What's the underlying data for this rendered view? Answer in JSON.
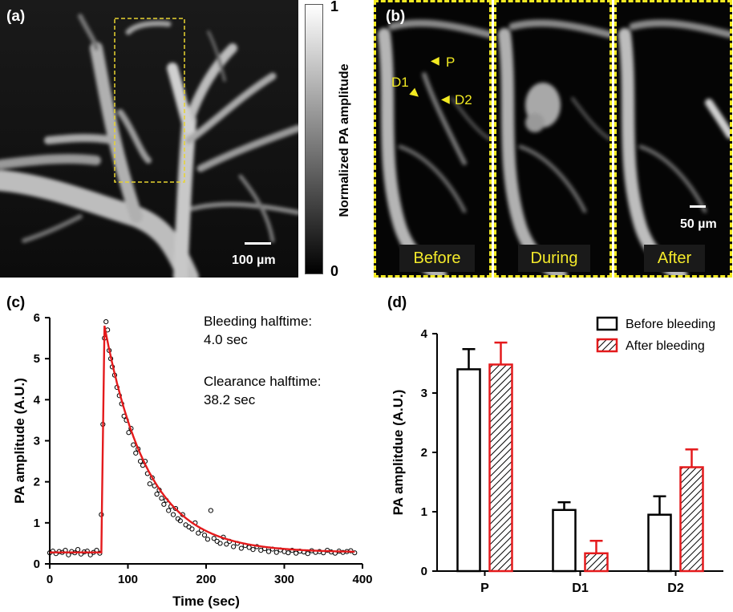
{
  "panel_a": {
    "label": "(a)",
    "scalebar": "100 µm",
    "colorbar": {
      "title": "Normalized PA amplitude",
      "max": "1",
      "min": "0"
    }
  },
  "panel_b": {
    "label": "(b)",
    "frames": [
      "Before",
      "During",
      "After"
    ],
    "markers": [
      "P",
      "D1",
      "D2"
    ],
    "scalebar": "50 µm"
  },
  "colors": {
    "fit_line": "#e41a1c",
    "before_bar": "#000000",
    "after_bar": "#e41a1c",
    "annotation": "#f2ea22"
  },
  "chart_data": [
    {
      "type": "scatter",
      "panel_label": "(c)",
      "xlabel": "Time (sec)",
      "ylabel": "PA amplitude (A.U.)",
      "xlim": [
        0,
        400
      ],
      "ylim": [
        0,
        6
      ],
      "xticks": [
        0,
        100,
        200,
        300,
        400
      ],
      "yticks": [
        0,
        1,
        2,
        3,
        4,
        5,
        6
      ],
      "annotations": [
        "Bleeding halftime:",
        "4.0 sec",
        "Clearance halftime:",
        "38.2 sec"
      ],
      "fit": {
        "baseline": 0.28,
        "onset_time": 66,
        "peak_time": 70,
        "peak_value": 5.8,
        "bleeding_halftime": 4.0,
        "clearance_halftime": 38.2
      },
      "series": [
        {
          "x": [
            0,
            4,
            8,
            12,
            16,
            20,
            24,
            28,
            32,
            36,
            40,
            44,
            48,
            52,
            56,
            60,
            64,
            66,
            68,
            70,
            72,
            74,
            76,
            78,
            80,
            83,
            86,
            89,
            92,
            95,
            98,
            101,
            104,
            107,
            110,
            113,
            116,
            119,
            122,
            125,
            128,
            131,
            134,
            137,
            140,
            143,
            146,
            149,
            152,
            155,
            158,
            161,
            164,
            167,
            170,
            174,
            178,
            182,
            186,
            190,
            194,
            198,
            202,
            206,
            210,
            214,
            218,
            222,
            226,
            230,
            235,
            240,
            245,
            250,
            255,
            260,
            265,
            270,
            275,
            280,
            285,
            290,
            295,
            300,
            305,
            310,
            315,
            320,
            325,
            330,
            335,
            340,
            345,
            350,
            355,
            360,
            365,
            370,
            375,
            380,
            385,
            390
          ],
          "y": [
            0.27,
            0.31,
            0.25,
            0.3,
            0.28,
            0.33,
            0.22,
            0.3,
            0.27,
            0.35,
            0.24,
            0.29,
            0.31,
            0.22,
            0.28,
            0.33,
            0.26,
            1.2,
            3.4,
            5.5,
            5.9,
            5.7,
            5.2,
            5.0,
            4.8,
            4.6,
            4.3,
            4.1,
            3.9,
            3.6,
            3.5,
            3.2,
            3.3,
            2.9,
            2.7,
            2.8,
            2.5,
            2.4,
            2.5,
            2.2,
            1.95,
            2.1,
            1.9,
            1.7,
            1.8,
            1.6,
            1.45,
            1.55,
            1.3,
            1.4,
            1.2,
            1.35,
            1.1,
            1.05,
            1.2,
            0.95,
            0.9,
            0.85,
            1.0,
            0.75,
            0.82,
            0.7,
            0.6,
            1.3,
            0.62,
            0.55,
            0.5,
            0.65,
            0.48,
            0.55,
            0.42,
            0.5,
            0.38,
            0.45,
            0.4,
            0.35,
            0.42,
            0.33,
            0.37,
            0.3,
            0.36,
            0.28,
            0.34,
            0.3,
            0.27,
            0.33,
            0.26,
            0.31,
            0.29,
            0.25,
            0.32,
            0.28,
            0.3,
            0.27,
            0.33,
            0.29,
            0.26,
            0.31,
            0.28,
            0.3,
            0.32,
            0.27
          ]
        }
      ]
    },
    {
      "type": "bar",
      "panel_label": "(d)",
      "ylabel": "PA amplitdue (A.U.)",
      "categories": [
        "P",
        "D1",
        "D2"
      ],
      "ylim": [
        0,
        4
      ],
      "yticks": [
        0,
        1,
        2,
        3,
        4
      ],
      "legend_position": "top-right",
      "series": [
        {
          "name": "Before bleeding",
          "values": [
            3.4,
            1.03,
            0.95
          ],
          "errors": [
            0.34,
            0.13,
            0.31
          ]
        },
        {
          "name": "After bleeding",
          "values": [
            3.48,
            0.3,
            1.75
          ],
          "errors": [
            0.37,
            0.21,
            0.3
          ]
        }
      ]
    }
  ]
}
